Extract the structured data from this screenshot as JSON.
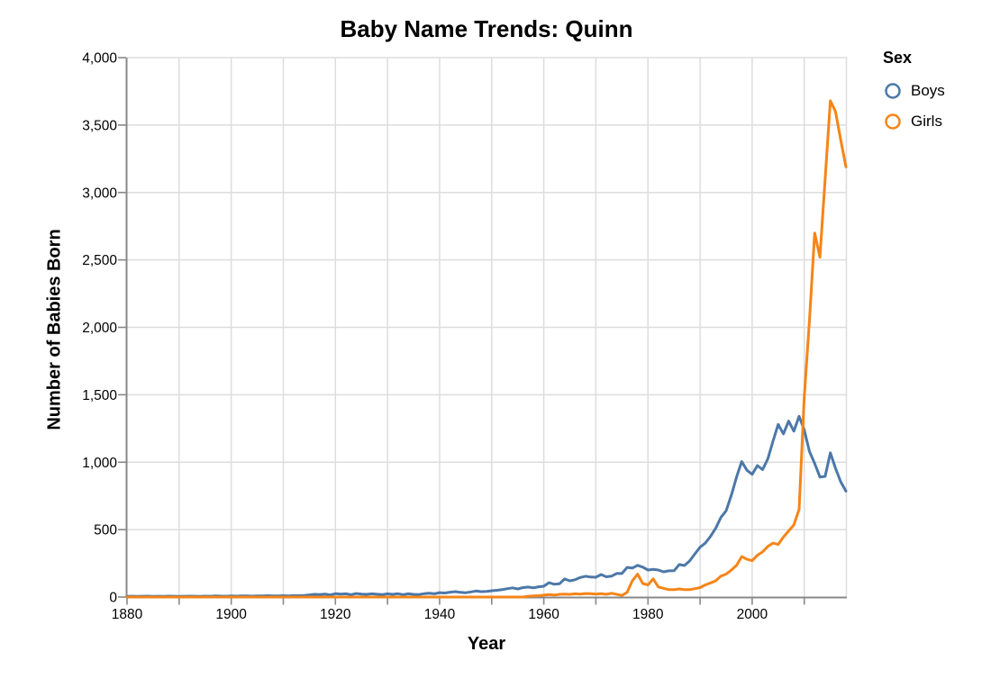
{
  "chart_data": {
    "type": "line",
    "title": "Baby Name Trends: Quinn",
    "xlabel": "Year",
    "ylabel": "Number of Babies Born",
    "grid": true,
    "legend": {
      "title": "Sex",
      "position": "right",
      "items": [
        {
          "label": "Boys",
          "color": "#4c78a8"
        },
        {
          "label": "Girls",
          "color": "#f58518"
        }
      ]
    },
    "colors": {
      "grid": "#dddddd",
      "axis": "#888888",
      "label": "#000000"
    },
    "x_range": [
      1880,
      2018
    ],
    "y_range": [
      0,
      4000
    ],
    "x_tick_interval": 10,
    "x_labeled_ticks": [
      1880,
      1900,
      1920,
      1940,
      1960,
      1980,
      2000
    ],
    "y_ticks": [
      0,
      500,
      1000,
      1500,
      2000,
      2500,
      3000,
      3500,
      4000
    ],
    "y_tick_labels": [
      "0",
      "500",
      "1,000",
      "1,500",
      "2,000",
      "2,500",
      "3,000",
      "3,500",
      "4,000"
    ],
    "x": [
      1880,
      1881,
      1882,
      1883,
      1884,
      1885,
      1886,
      1887,
      1888,
      1889,
      1890,
      1891,
      1892,
      1893,
      1894,
      1895,
      1896,
      1897,
      1898,
      1899,
      1900,
      1901,
      1902,
      1903,
      1904,
      1905,
      1906,
      1907,
      1908,
      1909,
      1910,
      1911,
      1912,
      1913,
      1914,
      1915,
      1916,
      1917,
      1918,
      1919,
      1920,
      1921,
      1922,
      1923,
      1924,
      1925,
      1926,
      1927,
      1928,
      1929,
      1930,
      1931,
      1932,
      1933,
      1934,
      1935,
      1936,
      1937,
      1938,
      1939,
      1940,
      1941,
      1942,
      1943,
      1944,
      1945,
      1946,
      1947,
      1948,
      1949,
      1950,
      1951,
      1952,
      1953,
      1954,
      1955,
      1956,
      1957,
      1958,
      1959,
      1960,
      1961,
      1962,
      1963,
      1964,
      1965,
      1966,
      1967,
      1968,
      1969,
      1970,
      1971,
      1972,
      1973,
      1974,
      1975,
      1976,
      1977,
      1978,
      1979,
      1980,
      1981,
      1982,
      1983,
      1984,
      1985,
      1986,
      1987,
      1988,
      1989,
      1990,
      1991,
      1992,
      1993,
      1994,
      1995,
      1996,
      1997,
      1998,
      1999,
      2000,
      2001,
      2002,
      2003,
      2004,
      2005,
      2006,
      2007,
      2008,
      2009,
      2010,
      2011,
      2012,
      2013,
      2014,
      2015,
      2016,
      2017,
      2018
    ],
    "series": [
      {
        "name": "Boys",
        "color": "#4c78a8",
        "values": [
          5,
          6,
          5,
          6,
          7,
          5,
          6,
          5,
          7,
          6,
          5,
          6,
          7,
          6,
          5,
          7,
          6,
          8,
          7,
          6,
          8,
          7,
          9,
          8,
          7,
          9,
          8,
          10,
          9,
          8,
          10,
          9,
          11,
          10,
          12,
          16,
          20,
          18,
          22,
          16,
          25,
          22,
          24,
          18,
          26,
          22,
          20,
          24,
          21,
          18,
          24,
          20,
          25,
          18,
          24,
          20,
          19,
          25,
          28,
          24,
          33,
          30,
          36,
          40,
          35,
          32,
          38,
          45,
          40,
          42,
          47,
          50,
          55,
          62,
          68,
          60,
          70,
          74,
          68,
          76,
          80,
          107,
          95,
          98,
          134,
          120,
          128,
          145,
          154,
          148,
          147,
          167,
          150,
          155,
          175,
          174,
          220,
          215,
          235,
          222,
          200,
          205,
          200,
          187,
          194,
          195,
          241,
          234,
          268,
          320,
          370,
          400,
          450,
          510,
          590,
          640,
          755,
          890,
          1005,
          940,
          910,
          975,
          945,
          1025,
          1155,
          1280,
          1210,
          1305,
          1230,
          1340,
          1240,
          1080,
          990,
          890,
          895,
          1070,
          955,
          855,
          785
        ]
      },
      {
        "name": "Girls",
        "color": "#f58518",
        "values": [
          0,
          0,
          0,
          0,
          0,
          0,
          0,
          0,
          0,
          0,
          0,
          0,
          0,
          0,
          0,
          0,
          0,
          0,
          0,
          0,
          0,
          0,
          0,
          0,
          0,
          0,
          0,
          0,
          0,
          0,
          0,
          0,
          0,
          0,
          0,
          0,
          0,
          0,
          0,
          0,
          0,
          0,
          0,
          0,
          0,
          0,
          0,
          0,
          0,
          0,
          0,
          0,
          0,
          0,
          0,
          0,
          0,
          0,
          0,
          0,
          0,
          0,
          0,
          0,
          0,
          0,
          0,
          0,
          0,
          0,
          0,
          0,
          0,
          0,
          0,
          0,
          0,
          6,
          8,
          10,
          14,
          18,
          15,
          20,
          22,
          20,
          24,
          22,
          26,
          25,
          22,
          25,
          20,
          28,
          20,
          12,
          35,
          120,
          170,
          100,
          90,
          135,
          75,
          65,
          55,
          55,
          60,
          55,
          55,
          62,
          70,
          90,
          105,
          120,
          155,
          170,
          200,
          235,
          300,
          280,
          270,
          310,
          335,
          375,
          400,
          390,
          445,
          490,
          535,
          650,
          1480,
          2050,
          2700,
          2520,
          3100,
          3680,
          3600,
          3390,
          3190
        ]
      }
    ]
  }
}
